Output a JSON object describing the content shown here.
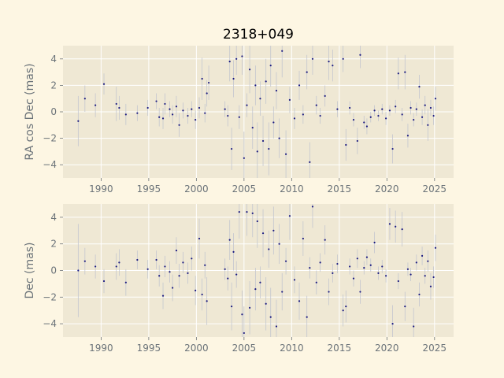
{
  "figure": {
    "title": "2318+049",
    "background": "#fdf6e3",
    "panel_background": "#efe8d4",
    "grid_color": "#ffffff",
    "point_color": "#1a1a80",
    "errorbar_color": "#c3c6cf"
  },
  "chart_data": [
    {
      "type": "scatter",
      "title": "",
      "xlabel": "",
      "ylabel": "RA cos Dec (mas)",
      "xlim": [
        1986,
        2027
      ],
      "ylim": [
        -5,
        5
      ],
      "xticks": [
        1990,
        1995,
        2000,
        2005,
        2010,
        2015,
        2020,
        2025
      ],
      "yticks": [
        -4,
        -2,
        0,
        2,
        4
      ],
      "grid": true,
      "error_bars": true,
      "points": [
        [
          1987.6,
          -0.7,
          1.9
        ],
        [
          1988.3,
          1.0,
          1.0
        ],
        [
          1989.4,
          0.5,
          0.9
        ],
        [
          1990.3,
          2.1,
          0.8
        ],
        [
          1991.6,
          0.6,
          1.3
        ],
        [
          1991.9,
          0.3,
          0.9
        ],
        [
          1992.6,
          -0.2,
          0.8
        ],
        [
          1993.8,
          -0.1,
          0.6
        ],
        [
          1994.9,
          0.3,
          0.6
        ],
        [
          1995.8,
          0.8,
          0.6
        ],
        [
          1996.1,
          -0.4,
          0.7
        ],
        [
          1996.5,
          -0.5,
          0.8
        ],
        [
          1996.7,
          0.6,
          0.8
        ],
        [
          1997.2,
          0.2,
          0.6
        ],
        [
          1997.5,
          -0.2,
          0.7
        ],
        [
          1997.9,
          0.4,
          0.8
        ],
        [
          1998.2,
          -1.0,
          0.9
        ],
        [
          1998.6,
          0.1,
          0.6
        ],
        [
          1999.1,
          -0.3,
          0.6
        ],
        [
          1999.5,
          0.2,
          0.6
        ],
        [
          1999.9,
          -0.6,
          0.7
        ],
        [
          2000.3,
          0.3,
          0.8
        ],
        [
          2000.6,
          2.5,
          1.6
        ],
        [
          2000.9,
          -0.1,
          0.7
        ],
        [
          2001.1,
          1.4,
          1.0
        ],
        [
          2001.3,
          2.2,
          1.3
        ],
        [
          2003.0,
          0.2,
          0.6
        ],
        [
          2003.3,
          -0.3,
          0.8
        ],
        [
          2003.5,
          3.8,
          1.5
        ],
        [
          2003.7,
          -2.8,
          1.6
        ],
        [
          2003.9,
          2.5,
          1.4
        ],
        [
          2004.2,
          4.0,
          1.2
        ],
        [
          2004.5,
          -0.4,
          0.9
        ],
        [
          2004.8,
          4.2,
          1.4
        ],
        [
          2005.0,
          -3.5,
          2.0
        ],
        [
          2005.3,
          0.5,
          0.9
        ],
        [
          2005.6,
          3.2,
          1.8
        ],
        [
          2005.9,
          -1.2,
          1.6
        ],
        [
          2006.2,
          2.0,
          1.5
        ],
        [
          2006.4,
          -3.0,
          2.2
        ],
        [
          2006.7,
          1.0,
          1.3
        ],
        [
          2007.0,
          -2.2,
          1.9
        ],
        [
          2007.3,
          2.3,
          1.7
        ],
        [
          2007.6,
          -2.8,
          2.0
        ],
        [
          2007.8,
          3.5,
          1.6
        ],
        [
          2008.1,
          -0.8,
          1.2
        ],
        [
          2008.4,
          1.6,
          1.4
        ],
        [
          2008.7,
          -2.0,
          1.5
        ],
        [
          2009.0,
          4.6,
          2.0
        ],
        [
          2009.4,
          -3.2,
          1.8
        ],
        [
          2009.8,
          0.9,
          1.0
        ],
        [
          2010.3,
          -0.5,
          0.8
        ],
        [
          2010.8,
          2.0,
          1.1
        ],
        [
          2011.2,
          -0.2,
          0.7
        ],
        [
          2011.6,
          3.0,
          1.3
        ],
        [
          2011.9,
          -3.8,
          1.5
        ],
        [
          2012.2,
          4.0,
          1.2
        ],
        [
          2012.6,
          0.5,
          0.7
        ],
        [
          2013.0,
          -0.3,
          0.6
        ],
        [
          2013.5,
          1.2,
          0.8
        ],
        [
          2013.9,
          3.8,
          1.4
        ],
        [
          2014.3,
          3.5,
          1.2
        ],
        [
          2014.8,
          0.2,
          0.6
        ],
        [
          2015.4,
          4.0,
          1.0
        ],
        [
          2015.7,
          -2.5,
          1.2
        ],
        [
          2016.1,
          0.3,
          0.5
        ],
        [
          2016.5,
          -0.6,
          0.5
        ],
        [
          2016.9,
          -2.2,
          1.0
        ],
        [
          2017.2,
          4.3,
          1.0
        ],
        [
          2017.6,
          -0.8,
          0.5
        ],
        [
          2017.9,
          -1.1,
          0.6
        ],
        [
          2018.3,
          -0.4,
          0.4
        ],
        [
          2018.7,
          0.1,
          0.4
        ],
        [
          2019.1,
          -0.3,
          0.4
        ],
        [
          2019.5,
          0.2,
          0.4
        ],
        [
          2019.9,
          -0.5,
          0.5
        ],
        [
          2020.3,
          0.1,
          0.4
        ],
        [
          2020.6,
          -2.8,
          1.1
        ],
        [
          2020.9,
          0.4,
          0.5
        ],
        [
          2021.2,
          2.9,
          1.2
        ],
        [
          2021.6,
          -0.2,
          0.5
        ],
        [
          2021.9,
          3.0,
          1.3
        ],
        [
          2022.2,
          -1.8,
          0.9
        ],
        [
          2022.5,
          0.3,
          0.5
        ],
        [
          2022.8,
          -0.6,
          0.5
        ],
        [
          2023.1,
          0.2,
          0.5
        ],
        [
          2023.4,
          1.9,
          0.9
        ],
        [
          2023.7,
          -0.4,
          0.6
        ],
        [
          2024.0,
          0.5,
          0.7
        ],
        [
          2024.3,
          -1.0,
          1.2
        ],
        [
          2024.6,
          0.3,
          0.6
        ],
        [
          2024.9,
          -0.3,
          0.7
        ],
        [
          2025.1,
          1.0,
          0.9
        ]
      ]
    },
    {
      "type": "scatter",
      "title": "",
      "xlabel": "",
      "ylabel": "Dec (mas)",
      "xlim": [
        1986,
        2027
      ],
      "ylim": [
        -5,
        5
      ],
      "xticks": [
        1990,
        1995,
        2000,
        2005,
        2010,
        2015,
        2020,
        2025
      ],
      "yticks": [
        -4,
        -2,
        0,
        2,
        4
      ],
      "grid": true,
      "error_bars": true,
      "points": [
        [
          1987.6,
          0.0,
          3.5
        ],
        [
          1988.3,
          0.7,
          1.0
        ],
        [
          1989.4,
          0.3,
          0.9
        ],
        [
          1990.3,
          -0.8,
          0.9
        ],
        [
          1991.6,
          0.3,
          1.0
        ],
        [
          1991.9,
          0.6,
          1.0
        ],
        [
          1992.6,
          -0.9,
          1.0
        ],
        [
          1993.8,
          0.8,
          0.7
        ],
        [
          1994.9,
          0.1,
          0.7
        ],
        [
          1995.8,
          0.8,
          0.7
        ],
        [
          1996.1,
          -0.4,
          0.8
        ],
        [
          1996.5,
          -1.9,
          1.0
        ],
        [
          1996.7,
          0.3,
          0.8
        ],
        [
          1997.2,
          -0.1,
          0.8
        ],
        [
          1997.5,
          -1.3,
          1.0
        ],
        [
          1997.9,
          1.5,
          1.0
        ],
        [
          1998.2,
          -0.4,
          0.9
        ],
        [
          1998.6,
          0.6,
          0.8
        ],
        [
          1999.1,
          -0.2,
          0.8
        ],
        [
          1999.5,
          0.9,
          0.9
        ],
        [
          1999.9,
          -1.5,
          1.1
        ],
        [
          2000.3,
          2.4,
          1.5
        ],
        [
          2000.6,
          -1.8,
          1.2
        ],
        [
          2000.9,
          0.4,
          1.0
        ],
        [
          2001.1,
          -2.3,
          1.8
        ],
        [
          2003.0,
          0.1,
          0.8
        ],
        [
          2003.3,
          -0.6,
          0.9
        ],
        [
          2003.5,
          2.3,
          1.5
        ],
        [
          2003.7,
          -2.7,
          1.8
        ],
        [
          2003.9,
          1.4,
          1.4
        ],
        [
          2004.2,
          -0.3,
          1.0
        ],
        [
          2004.5,
          4.4,
          2.0
        ],
        [
          2004.8,
          -3.3,
          1.8
        ],
        [
          2005.0,
          -4.7,
          2.0
        ],
        [
          2005.3,
          4.4,
          1.8
        ],
        [
          2005.6,
          -2.8,
          2.0
        ],
        [
          2005.9,
          4.3,
          1.8
        ],
        [
          2006.2,
          -1.4,
          1.6
        ],
        [
          2006.4,
          3.7,
          2.0
        ],
        [
          2006.7,
          -0.9,
          1.2
        ],
        [
          2007.0,
          2.8,
          1.8
        ],
        [
          2007.3,
          -2.5,
          2.0
        ],
        [
          2007.6,
          1.6,
          1.4
        ],
        [
          2007.8,
          -3.5,
          2.2
        ],
        [
          2008.1,
          3.0,
          1.8
        ],
        [
          2008.4,
          -4.2,
          2.0
        ],
        [
          2008.7,
          2.0,
          1.5
        ],
        [
          2009.0,
          -1.6,
          1.4
        ],
        [
          2009.4,
          0.7,
          1.0
        ],
        [
          2009.8,
          4.1,
          1.8
        ],
        [
          2010.3,
          -0.7,
          1.0
        ],
        [
          2010.8,
          -2.3,
          1.4
        ],
        [
          2011.2,
          2.4,
          1.3
        ],
        [
          2011.6,
          -3.5,
          1.6
        ],
        [
          2011.9,
          0.2,
          0.8
        ],
        [
          2012.2,
          4.8,
          1.6
        ],
        [
          2012.6,
          -0.9,
          0.9
        ],
        [
          2013.0,
          0.6,
          0.7
        ],
        [
          2013.5,
          2.3,
          1.1
        ],
        [
          2013.9,
          -1.6,
          1.0
        ],
        [
          2014.3,
          -0.2,
          0.7
        ],
        [
          2014.8,
          0.5,
          0.7
        ],
        [
          2015.4,
          -3.0,
          1.2
        ],
        [
          2015.7,
          -2.7,
          1.2
        ],
        [
          2016.1,
          0.3,
          0.6
        ],
        [
          2016.5,
          -0.6,
          0.6
        ],
        [
          2016.9,
          0.9,
          0.7
        ],
        [
          2017.2,
          -1.6,
          0.9
        ],
        [
          2017.6,
          0.2,
          0.5
        ],
        [
          2017.9,
          1.0,
          0.6
        ],
        [
          2018.3,
          0.4,
          0.5
        ],
        [
          2018.7,
          2.1,
          0.8
        ],
        [
          2019.1,
          -0.2,
          0.5
        ],
        [
          2019.5,
          0.3,
          0.5
        ],
        [
          2019.9,
          -0.4,
          0.5
        ],
        [
          2020.3,
          3.5,
          1.2
        ],
        [
          2020.6,
          -4.0,
          1.4
        ],
        [
          2020.9,
          3.3,
          1.2
        ],
        [
          2021.2,
          -0.8,
          0.6
        ],
        [
          2021.6,
          3.1,
          1.3
        ],
        [
          2021.9,
          -2.7,
          1.1
        ],
        [
          2022.2,
          0.1,
          0.5
        ],
        [
          2022.5,
          -0.3,
          0.5
        ],
        [
          2022.8,
          -4.2,
          1.4
        ],
        [
          2023.1,
          0.6,
          0.6
        ],
        [
          2023.4,
          -1.8,
          0.9
        ],
        [
          2023.7,
          1.1,
          0.7
        ],
        [
          2024.0,
          -0.4,
          0.6
        ],
        [
          2024.3,
          0.7,
          0.8
        ],
        [
          2024.6,
          -1.2,
          1.0
        ],
        [
          2024.9,
          -0.5,
          0.8
        ],
        [
          2025.1,
          1.7,
          1.0
        ]
      ]
    }
  ]
}
